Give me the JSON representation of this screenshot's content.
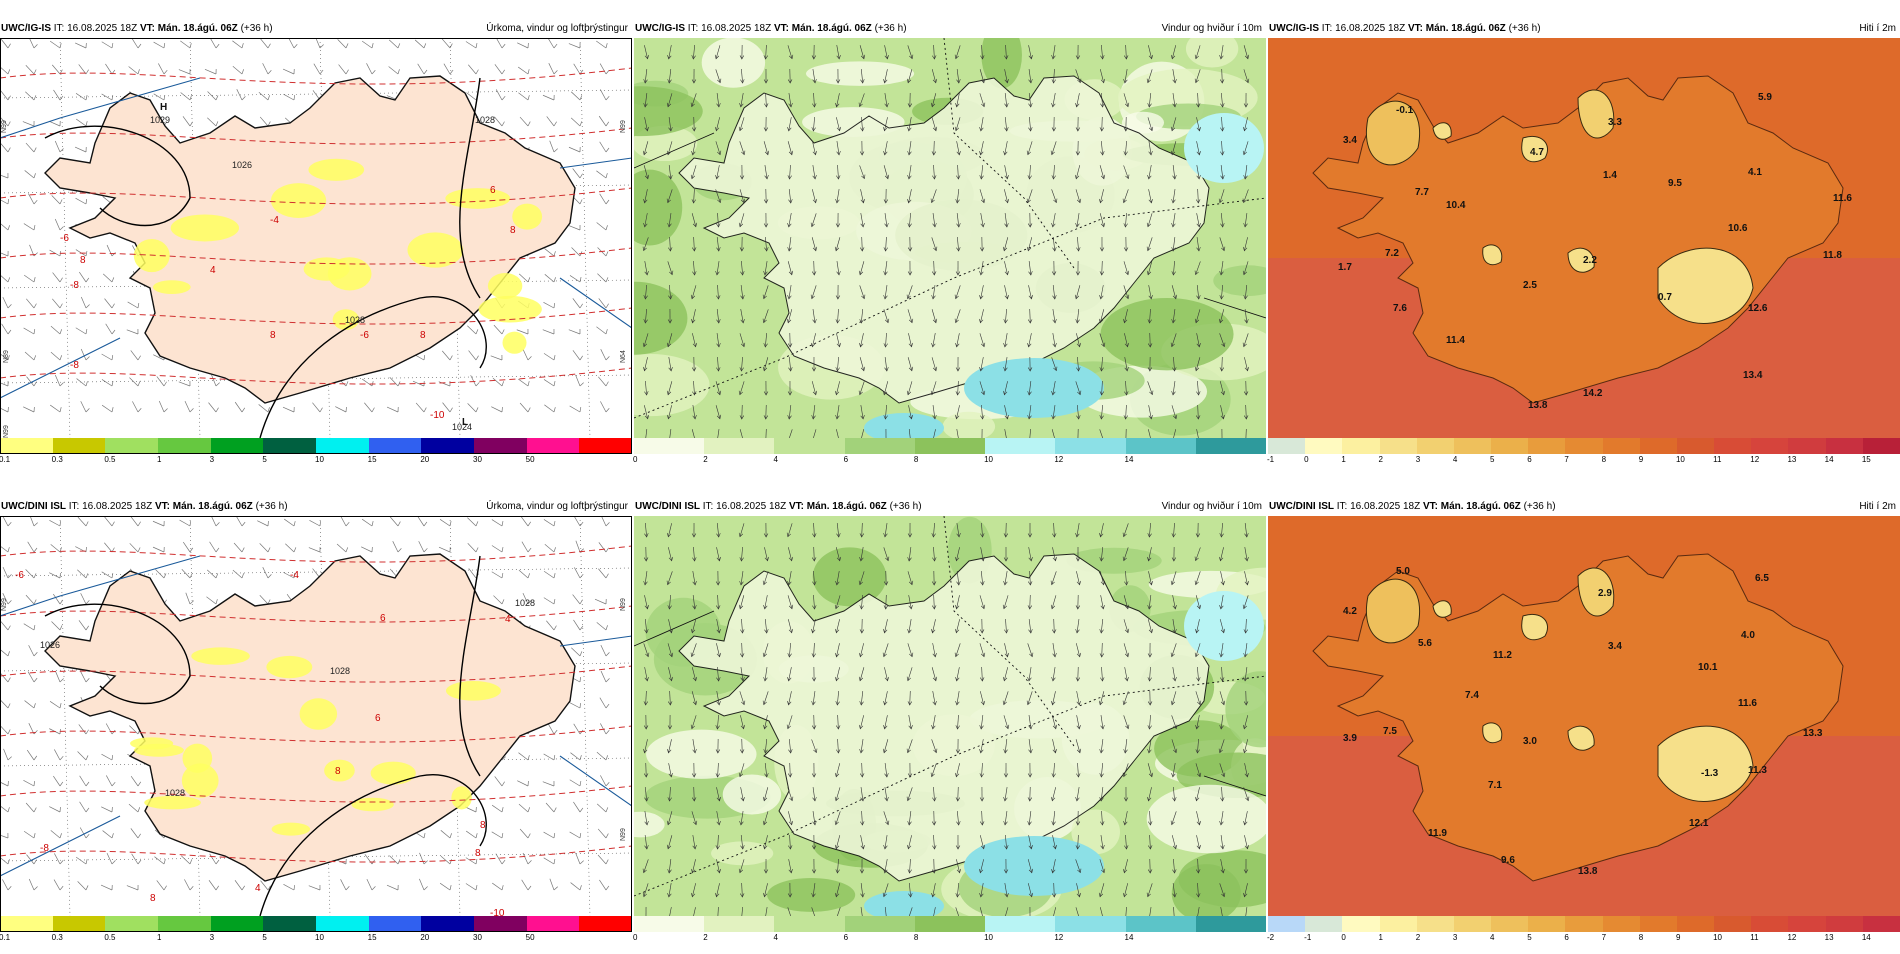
{
  "panels": {
    "p1": {
      "model": "UWC/IG-IS",
      "issue": "IT: 16.08.2025 18Z",
      "valid": "VT: Mán. 18.ágú. 06Z",
      "lead": "(+36 h)",
      "title": "Úrkoma, vindur og loftþrýstingur",
      "colorbar_ticks": [
        "0.1",
        "0.3",
        "0.5",
        "1",
        "3",
        "5",
        "10",
        "15",
        "20",
        "30",
        "50"
      ],
      "colorbar_colors": [
        "#ffff80",
        "#c8c800",
        "#a0e060",
        "#66c840",
        "#00a020",
        "#006040",
        "#00f0f0",
        "#3060f0",
        "#0000a0",
        "#800060",
        "#ff1090",
        "#ff0000"
      ],
      "pressure_labels": [
        "1029",
        "1028",
        "1026",
        "1028",
        "1024"
      ],
      "pressure_marks": [
        "H",
        "L"
      ],
      "temp_labels": [
        "-8",
        "-6",
        "-4",
        "4",
        "8",
        "8",
        "8",
        "-6",
        "6",
        "-8",
        "-10",
        "8"
      ],
      "lat_labels": [
        "N99",
        "N99",
        "N64",
        "N89",
        "N99"
      ]
    },
    "p2": {
      "model": "UWC/IG-IS",
      "issue": "IT: 16.08.2025 18Z",
      "valid": "VT: Mán. 18.ágú. 06Z",
      "lead": "(+36 h)",
      "title": "Vindur og hviður í 10m",
      "colorbar_ticks": [
        "0",
        "2",
        "4",
        "6",
        "8",
        "10",
        "12",
        "14"
      ],
      "colorbar_colors": [
        "#f7fbe8",
        "#e2f2c0",
        "#c2e498",
        "#a2d27a",
        "#8cc25c",
        "#b8f4f4",
        "#8ce0e6",
        "#5cc4c8",
        "#2e9a9c"
      ]
    },
    "p3": {
      "model": "UWC/IG-IS",
      "issue": "IT: 16.08.2025 18Z",
      "valid": "VT: Mán. 18.ágú. 06Z",
      "lead": "(+36 h)",
      "title": "Hiti í 2m",
      "colorbar_ticks": [
        "-1",
        "0",
        "1",
        "2",
        "3",
        "4",
        "5",
        "6",
        "7",
        "8",
        "9",
        "10",
        "11",
        "12",
        "13",
        "14",
        "15"
      ],
      "colorbar_colors": [
        "#d8e8d8",
        "#fffac0",
        "#fcf0a0",
        "#f6e08a",
        "#f2d070",
        "#eec05c",
        "#ebb04a",
        "#e89c3c",
        "#e58a32",
        "#e27a2c",
        "#de6a2a",
        "#d85a2e",
        "#d84c36",
        "#d6443c",
        "#d03c3e",
        "#c83040",
        "#b82038"
      ],
      "values": [
        "-0.1",
        "5.9",
        "3.4",
        "4.7",
        "3.3",
        "1.4",
        "9.5",
        "4.1",
        "11.6",
        "7.7",
        "10.4",
        "10.6",
        "11.8",
        "1.7",
        "7.2",
        "2.5",
        "2.2",
        "0.7",
        "12.6",
        "7.6",
        "11.4",
        "13.4",
        "13.8",
        "14.2"
      ]
    },
    "p4": {
      "model": "UWC/DINI ISL",
      "issue": "IT: 16.08.2025 18Z",
      "valid": "VT: Mán. 18.ágú. 06Z",
      "lead": "(+36 h)",
      "title": "Úrkoma, vindur og loftþrýstingur",
      "colorbar_ticks": [
        "0.1",
        "0.3",
        "0.5",
        "1",
        "3",
        "5",
        "10",
        "15",
        "20",
        "30",
        "50"
      ],
      "colorbar_colors": [
        "#ffff80",
        "#c8c800",
        "#a0e060",
        "#66c840",
        "#00a020",
        "#006040",
        "#00f0f0",
        "#3060f0",
        "#0000a0",
        "#800060",
        "#ff1090",
        "#ff0000"
      ],
      "pressure_labels": [
        "1028",
        "1028",
        "1026",
        "1028"
      ],
      "temp_labels": [
        "-6",
        "-4",
        "4",
        "6",
        "6",
        "8",
        "8",
        "8",
        "8",
        "-10",
        "-8",
        "4"
      ],
      "lat_labels": [
        "N99",
        "N99",
        "N99"
      ]
    },
    "p5": {
      "model": "UWC/DINI ISL",
      "issue": "IT: 16.08.2025 18Z",
      "valid": "VT: Mán. 18.ágú. 06Z",
      "lead": "(+36 h)",
      "title": "Vindur og hviður í 10m",
      "colorbar_ticks": [
        "0",
        "2",
        "4",
        "6",
        "8",
        "10",
        "12",
        "14"
      ],
      "colorbar_colors": [
        "#f7fbe8",
        "#e2f2c0",
        "#c2e498",
        "#a2d27a",
        "#8cc25c",
        "#b8f4f4",
        "#8ce0e6",
        "#5cc4c8",
        "#2e9a9c"
      ]
    },
    "p6": {
      "model": "UWC/DINI ISL",
      "issue": "IT: 16.08.2025 18Z",
      "valid": "VT: Mán. 18.ágú. 06Z",
      "lead": "(+36 h)",
      "title": "Hiti í 2m",
      "colorbar_ticks": [
        "-2",
        "-1",
        "0",
        "1",
        "2",
        "3",
        "4",
        "5",
        "6",
        "7",
        "8",
        "9",
        "10",
        "11",
        "12",
        "13",
        "14"
      ],
      "colorbar_colors": [
        "#b8d8f8",
        "#d8e8d8",
        "#fffac0",
        "#fcf0a0",
        "#f6e08a",
        "#f2d070",
        "#eec05c",
        "#ebb04a",
        "#e89c3c",
        "#e58a32",
        "#e27a2c",
        "#de6a2a",
        "#d85a2e",
        "#d84c36",
        "#d6443c",
        "#d03c3e",
        "#c83040"
      ],
      "values": [
        "5.0",
        "6.5",
        "4.2",
        "2.9",
        "5.6",
        "11.2",
        "3.4",
        "4.0",
        "10.1",
        "7.4",
        "11.6",
        "3.9",
        "7.5",
        "3.0",
        "13.3",
        "-1.3",
        "11.3",
        "7.1",
        "11.9",
        "12.1",
        "9.6",
        "13.8"
      ]
    }
  }
}
